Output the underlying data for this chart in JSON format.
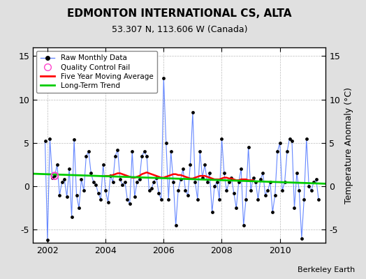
{
  "title": "EDMONTON INTERNATIONAL CS, ALTA",
  "subtitle": "53.307 N, 113.606 W (Canada)",
  "ylabel_right": "Temperature Anomaly (°C)",
  "attribution": "Berkeley Earth",
  "xlim": [
    2001.5,
    2011.58
  ],
  "ylim": [
    -6.5,
    16.0
  ],
  "yticks": [
    -5,
    0,
    5,
    10,
    15
  ],
  "xticks": [
    2002,
    2004,
    2006,
    2008,
    2010
  ],
  "figure_bg_color": "#e0e0e0",
  "plot_bg_color": "#ffffff",
  "raw_color": "#6688ff",
  "raw_marker_color": "#000000",
  "ma_color": "#ff0000",
  "trend_color": "#00cc00",
  "qc_color": "#ff44cc",
  "legend_labels": [
    "Raw Monthly Data",
    "Quality Control Fail",
    "Five Year Moving Average",
    "Long-Term Trend"
  ],
  "months": [
    2001.917,
    2002.0,
    2002.083,
    2002.167,
    2002.25,
    2002.333,
    2002.417,
    2002.5,
    2002.583,
    2002.667,
    2002.75,
    2002.833,
    2002.917,
    2003.0,
    2003.083,
    2003.167,
    2003.25,
    2003.333,
    2003.417,
    2003.5,
    2003.583,
    2003.667,
    2003.75,
    2003.833,
    2003.917,
    2004.0,
    2004.083,
    2004.167,
    2004.25,
    2004.333,
    2004.417,
    2004.5,
    2004.583,
    2004.667,
    2004.75,
    2004.833,
    2004.917,
    2005.0,
    2005.083,
    2005.167,
    2005.25,
    2005.333,
    2005.417,
    2005.5,
    2005.583,
    2005.667,
    2005.75,
    2005.833,
    2005.917,
    2006.0,
    2006.083,
    2006.167,
    2006.25,
    2006.333,
    2006.417,
    2006.5,
    2006.583,
    2006.667,
    2006.75,
    2006.833,
    2006.917,
    2007.0,
    2007.083,
    2007.167,
    2007.25,
    2007.333,
    2007.417,
    2007.5,
    2007.583,
    2007.667,
    2007.75,
    2007.833,
    2007.917,
    2008.0,
    2008.083,
    2008.167,
    2008.25,
    2008.333,
    2008.417,
    2008.5,
    2008.583,
    2008.667,
    2008.75,
    2008.833,
    2008.917,
    2009.0,
    2009.083,
    2009.167,
    2009.25,
    2009.333,
    2009.417,
    2009.5,
    2009.583,
    2009.667,
    2009.75,
    2009.833,
    2009.917,
    2010.0,
    2010.083,
    2010.167,
    2010.25,
    2010.333,
    2010.417,
    2010.5,
    2010.583,
    2010.667,
    2010.75,
    2010.833,
    2010.917,
    2011.0,
    2011.083,
    2011.167,
    2011.25,
    2011.333
  ],
  "values": [
    5.2,
    -6.2,
    5.5,
    1.0,
    1.2,
    2.5,
    -1.0,
    0.5,
    0.8,
    -1.2,
    2.0,
    -3.5,
    5.4,
    -1.0,
    -2.5,
    0.8,
    -0.5,
    3.5,
    4.0,
    1.5,
    0.5,
    0.2,
    -0.8,
    -1.5,
    2.5,
    -0.5,
    -1.8,
    1.2,
    0.5,
    3.5,
    4.2,
    0.8,
    0.2,
    0.5,
    -1.5,
    -2.0,
    4.0,
    -1.2,
    0.5,
    0.8,
    3.5,
    4.0,
    3.5,
    -0.5,
    -0.2,
    0.5,
    1.0,
    -0.8,
    -1.5,
    12.5,
    5.0,
    -1.5,
    4.0,
    0.5,
    -4.5,
    -0.5,
    0.8,
    2.0,
    -0.5,
    -1.0,
    2.5,
    8.5,
    0.5,
    -1.5,
    4.0,
    1.0,
    2.5,
    0.5,
    1.5,
    -3.0,
    0.0,
    0.5,
    -1.5,
    5.5,
    1.5,
    -0.5,
    0.5,
    1.0,
    -0.8,
    -2.5,
    0.5,
    2.0,
    -4.5,
    -1.5,
    4.5,
    -0.5,
    1.0,
    0.5,
    -1.5,
    0.8,
    1.5,
    -1.0,
    -0.5,
    0.5,
    -3.0,
    -1.0,
    4.0,
    5.0,
    -0.5,
    0.5,
    4.0,
    5.5,
    5.2,
    -2.5,
    1.5,
    -0.5,
    -6.0,
    -1.5,
    5.5,
    0.0,
    -0.5,
    0.5,
    0.8,
    -1.5
  ],
  "qc_fail_x": [
    2002.25
  ],
  "qc_fail_y": [
    1.2
  ],
  "ma_x": [
    2004.0,
    2004.083,
    2004.167,
    2004.25,
    2004.333,
    2004.417,
    2004.5,
    2004.583,
    2004.667,
    2004.75,
    2004.833,
    2004.917,
    2005.0,
    2005.083,
    2005.167,
    2005.25,
    2005.333,
    2005.417,
    2005.5,
    2005.583,
    2005.667,
    2005.75,
    2005.833,
    2005.917,
    2006.0,
    2006.083,
    2006.167,
    2006.25,
    2006.333,
    2006.417,
    2006.5,
    2006.583,
    2006.667,
    2006.75,
    2006.833,
    2006.917,
    2007.0,
    2007.083,
    2007.167,
    2007.25,
    2007.333,
    2007.417,
    2007.5,
    2007.583,
    2007.667,
    2007.75,
    2007.833,
    2007.917,
    2008.0,
    2008.083,
    2008.167,
    2008.25,
    2008.333,
    2008.417,
    2008.5,
    2008.583,
    2008.667,
    2008.75,
    2008.833,
    2008.917,
    2009.0,
    2009.083
  ],
  "ma_values": [
    1.2,
    1.2,
    1.2,
    1.3,
    1.4,
    1.5,
    1.5,
    1.4,
    1.3,
    1.2,
    1.1,
    1.0,
    1.0,
    1.1,
    1.2,
    1.4,
    1.5,
    1.6,
    1.5,
    1.4,
    1.3,
    1.2,
    1.1,
    1.0,
    1.0,
    1.1,
    1.2,
    1.3,
    1.4,
    1.4,
    1.3,
    1.3,
    1.2,
    1.1,
    1.0,
    0.9,
    0.9,
    1.0,
    1.1,
    1.2,
    1.2,
    1.2,
    1.1,
    1.0,
    0.9,
    0.8,
    0.8,
    0.8,
    0.9,
    1.0,
    1.0,
    0.9,
    0.9,
    0.8,
    0.7,
    0.7,
    0.8,
    0.8,
    0.8,
    0.7,
    0.7,
    0.7
  ],
  "trend_x": [
    2001.5,
    2011.58
  ],
  "trend_y": [
    1.45,
    0.3
  ]
}
